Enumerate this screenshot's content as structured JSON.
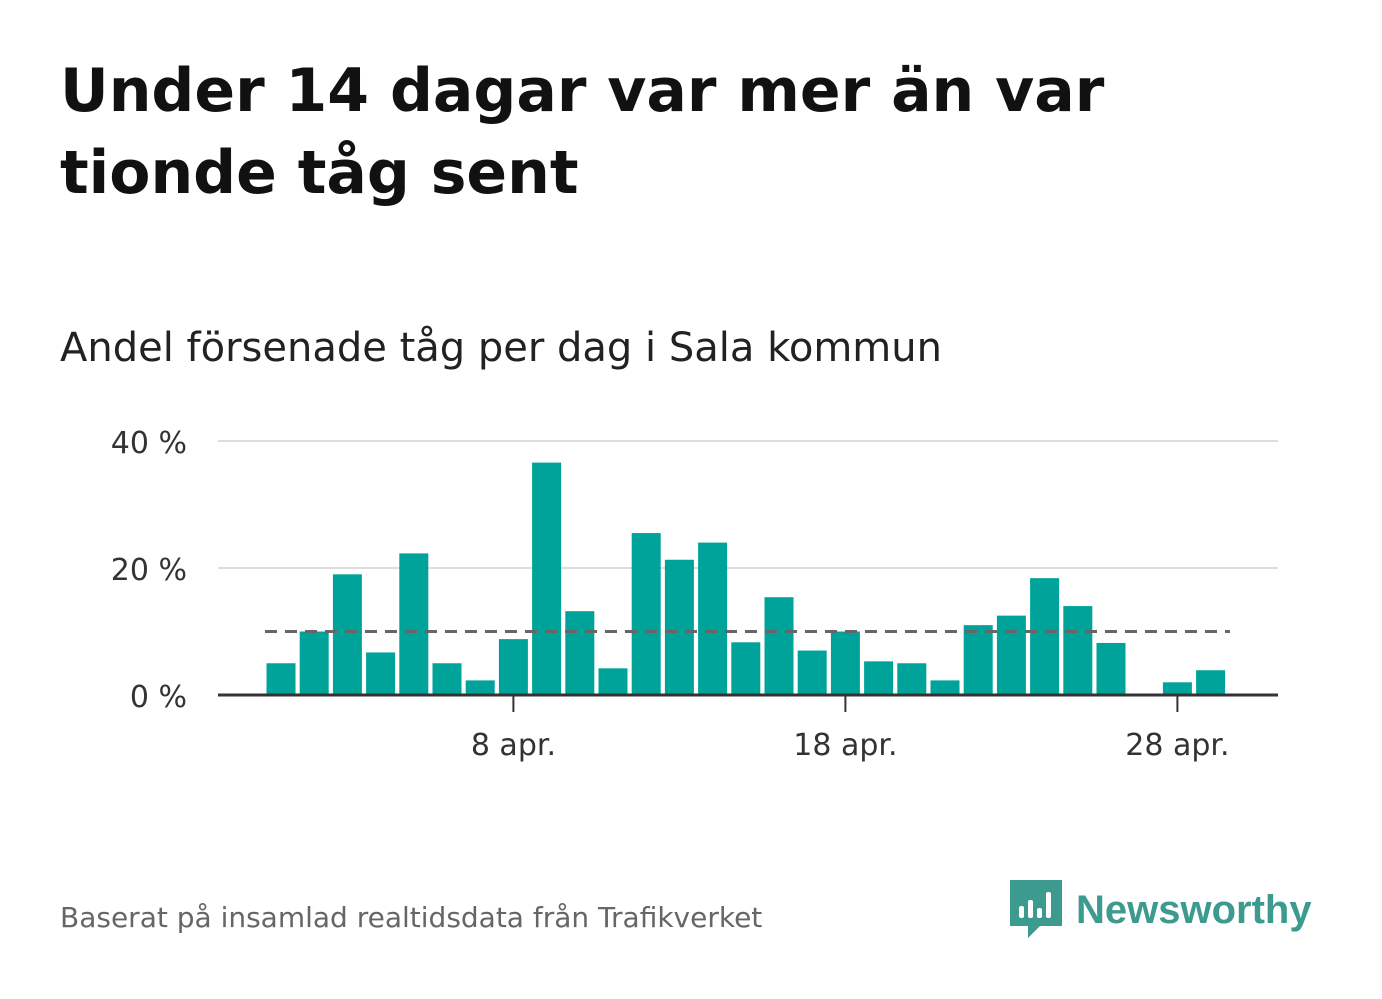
{
  "header": {
    "title": "Under 14 dagar var mer än var tionde tåg sent",
    "subtitle": "Andel försenade tåg per dag i Sala kommun"
  },
  "footer": {
    "source": "Baserat på insamlad realtidsdata från Trafikverket",
    "brand": "Newsworthy"
  },
  "colors": {
    "bar": "#00a399",
    "grid": "#dddddd",
    "axis": "#333333",
    "reference": "#666666",
    "brand": "#3c9a8f"
  },
  "chart_data": {
    "type": "bar",
    "title": "Andel försenade tåg per dag i Sala kommun",
    "xlabel": "",
    "ylabel": "",
    "ylim": [
      0,
      40
    ],
    "yticks": [
      {
        "value": 0,
        "label": "0 %"
      },
      {
        "value": 20,
        "label": "20 %"
      },
      {
        "value": 40,
        "label": "40 %"
      }
    ],
    "xticks": [
      {
        "day": 8,
        "label": "8 apr."
      },
      {
        "day": 18,
        "label": "18 apr."
      },
      {
        "day": 28,
        "label": "28 apr."
      }
    ],
    "x_days": [
      1,
      2,
      3,
      4,
      5,
      6,
      7,
      8,
      9,
      10,
      11,
      12,
      13,
      14,
      15,
      16,
      17,
      18,
      19,
      20,
      21,
      22,
      23,
      24,
      25,
      26,
      27,
      28,
      29
    ],
    "values": [
      5,
      10,
      19,
      6.7,
      22.3,
      5,
      2.3,
      8.8,
      36.6,
      13.2,
      4.2,
      25.5,
      21.3,
      24,
      8.3,
      15.4,
      7,
      10,
      5.3,
      5,
      2.3,
      11,
      12.5,
      18.4,
      14,
      8.2,
      0,
      2,
      3.9
    ],
    "reference_line": 10,
    "grid": true
  }
}
